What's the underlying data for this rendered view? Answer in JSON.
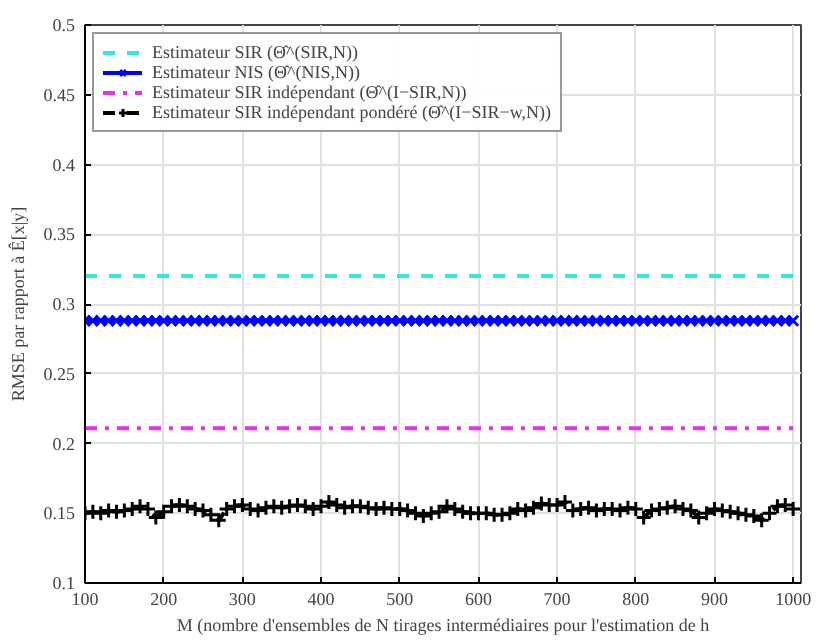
{
  "chart_data": {
    "type": "line",
    "xlabel": "M (nombre d'ensembles de N tirages intermédiaires pour l'estimation de h",
    "ylabel": "RMSE par rapport à Ê[x|y]",
    "x": [
      100,
      110,
      120,
      130,
      140,
      150,
      160,
      170,
      180,
      190,
      200,
      210,
      220,
      230,
      240,
      250,
      260,
      270,
      280,
      290,
      300,
      310,
      320,
      330,
      340,
      350,
      360,
      370,
      380,
      390,
      400,
      410,
      420,
      430,
      440,
      450,
      460,
      470,
      480,
      490,
      500,
      510,
      520,
      530,
      540,
      550,
      560,
      570,
      580,
      590,
      600,
      610,
      620,
      630,
      640,
      650,
      660,
      670,
      680,
      690,
      700,
      710,
      720,
      730,
      740,
      750,
      760,
      770,
      780,
      790,
      800,
      810,
      820,
      830,
      840,
      850,
      860,
      870,
      880,
      890,
      900,
      910,
      920,
      930,
      940,
      950,
      960,
      970,
      980,
      990,
      1000
    ],
    "series": [
      {
        "name": "Estimateur SIR (Θ̂^(SIR,N))",
        "color": "#33e6e6",
        "line_style": "dashed",
        "marker": "none",
        "values": [
          0.32,
          0.32,
          0.32,
          0.32,
          0.32,
          0.32,
          0.32,
          0.32,
          0.32,
          0.32,
          0.32,
          0.32,
          0.32,
          0.32,
          0.32,
          0.32,
          0.32,
          0.32,
          0.32,
          0.32,
          0.32,
          0.32,
          0.32,
          0.32,
          0.32,
          0.32,
          0.32,
          0.32,
          0.32,
          0.32,
          0.32,
          0.32,
          0.32,
          0.32,
          0.32,
          0.32,
          0.32,
          0.32,
          0.32,
          0.32,
          0.32,
          0.32,
          0.32,
          0.32,
          0.32,
          0.32,
          0.32,
          0.32,
          0.32,
          0.32,
          0.32,
          0.32,
          0.32,
          0.32,
          0.32,
          0.32,
          0.32,
          0.32,
          0.32,
          0.32,
          0.32,
          0.32,
          0.32,
          0.32,
          0.32,
          0.32,
          0.32,
          0.32,
          0.32,
          0.32,
          0.32,
          0.32,
          0.32,
          0.32,
          0.32,
          0.32,
          0.32,
          0.32,
          0.32,
          0.32,
          0.32,
          0.32,
          0.32,
          0.32,
          0.32,
          0.32,
          0.32,
          0.32,
          0.32,
          0.32,
          0.32
        ]
      },
      {
        "name": "Estimateur NIS (Θ̂^(NIS,N))",
        "color": "#0000ff",
        "line_style": "solid",
        "marker": "cross",
        "values": [
          0.288,
          0.288,
          0.288,
          0.288,
          0.288,
          0.288,
          0.288,
          0.288,
          0.288,
          0.288,
          0.288,
          0.288,
          0.288,
          0.288,
          0.288,
          0.288,
          0.288,
          0.288,
          0.288,
          0.288,
          0.288,
          0.288,
          0.288,
          0.288,
          0.288,
          0.288,
          0.288,
          0.288,
          0.288,
          0.288,
          0.288,
          0.288,
          0.288,
          0.288,
          0.288,
          0.288,
          0.288,
          0.288,
          0.288,
          0.288,
          0.288,
          0.288,
          0.288,
          0.288,
          0.288,
          0.288,
          0.288,
          0.288,
          0.288,
          0.288,
          0.288,
          0.288,
          0.288,
          0.288,
          0.288,
          0.288,
          0.288,
          0.288,
          0.288,
          0.288,
          0.288,
          0.288,
          0.288,
          0.288,
          0.288,
          0.288,
          0.288,
          0.288,
          0.288,
          0.288,
          0.288,
          0.288,
          0.288,
          0.288,
          0.288,
          0.288,
          0.288,
          0.288,
          0.288,
          0.288,
          0.288,
          0.288,
          0.288,
          0.288,
          0.288,
          0.288,
          0.288,
          0.288,
          0.288,
          0.288,
          0.288
        ]
      },
      {
        "name": "Estimateur SIR indépendant (Θ̂^(I−SIR,N))",
        "color": "#e633e6",
        "line_style": "dashdot",
        "marker": "none",
        "values": [
          0.211,
          0.211,
          0.211,
          0.211,
          0.211,
          0.211,
          0.211,
          0.211,
          0.211,
          0.211,
          0.211,
          0.211,
          0.211,
          0.211,
          0.211,
          0.211,
          0.211,
          0.211,
          0.211,
          0.211,
          0.211,
          0.211,
          0.211,
          0.211,
          0.211,
          0.211,
          0.211,
          0.211,
          0.211,
          0.211,
          0.211,
          0.211,
          0.211,
          0.211,
          0.211,
          0.211,
          0.211,
          0.211,
          0.211,
          0.211,
          0.211,
          0.211,
          0.211,
          0.211,
          0.211,
          0.211,
          0.211,
          0.211,
          0.211,
          0.211,
          0.211,
          0.211,
          0.211,
          0.211,
          0.211,
          0.211,
          0.211,
          0.211,
          0.211,
          0.211,
          0.211,
          0.211,
          0.211,
          0.211,
          0.211,
          0.211,
          0.211,
          0.211,
          0.211,
          0.211,
          0.211,
          0.211,
          0.211,
          0.211,
          0.211,
          0.211,
          0.211,
          0.211,
          0.211,
          0.211,
          0.211,
          0.211,
          0.211,
          0.211,
          0.211,
          0.211,
          0.211,
          0.211,
          0.211,
          0.211,
          0.211
        ]
      },
      {
        "name": "Estimateur SIR indépendant pondéré (Θ̂^(I−SIR−w,N))",
        "color": "#000000",
        "line_style": "dashed",
        "marker": "plus",
        "values": [
          0.15,
          0.151,
          0.15,
          0.152,
          0.151,
          0.152,
          0.153,
          0.155,
          0.153,
          0.147,
          0.151,
          0.155,
          0.156,
          0.155,
          0.153,
          0.152,
          0.149,
          0.145,
          0.153,
          0.155,
          0.156,
          0.153,
          0.152,
          0.154,
          0.155,
          0.154,
          0.155,
          0.156,
          0.155,
          0.153,
          0.155,
          0.158,
          0.156,
          0.154,
          0.155,
          0.155,
          0.154,
          0.153,
          0.154,
          0.153,
          0.153,
          0.152,
          0.15,
          0.148,
          0.15,
          0.151,
          0.155,
          0.153,
          0.151,
          0.15,
          0.15,
          0.15,
          0.149,
          0.149,
          0.15,
          0.153,
          0.152,
          0.154,
          0.157,
          0.156,
          0.156,
          0.158,
          0.152,
          0.153,
          0.154,
          0.152,
          0.153,
          0.153,
          0.152,
          0.154,
          0.153,
          0.147,
          0.152,
          0.153,
          0.154,
          0.155,
          0.153,
          0.152,
          0.147,
          0.15,
          0.153,
          0.152,
          0.151,
          0.15,
          0.149,
          0.148,
          0.145,
          0.15,
          0.155,
          0.156,
          0.153
        ]
      }
    ],
    "xlim": [
      100,
      1010
    ],
    "ylim": [
      0.1,
      0.5
    ],
    "xticks": [
      100,
      200,
      300,
      400,
      500,
      600,
      700,
      800,
      900,
      1000
    ],
    "yticks": [
      0.1,
      0.15,
      0.2,
      0.25,
      0.3,
      0.35,
      0.4,
      0.45,
      0.5
    ],
    "grid": true,
    "legend": "top left"
  }
}
